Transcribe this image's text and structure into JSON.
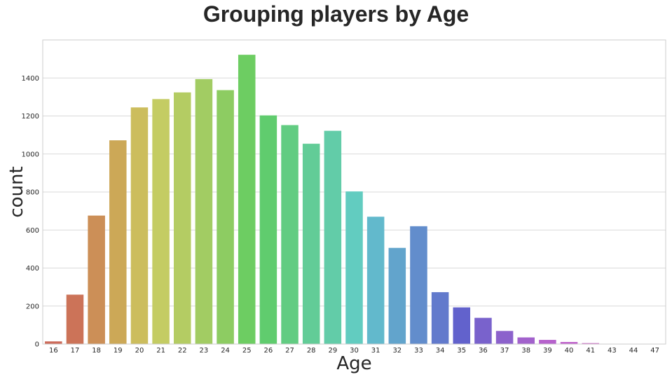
{
  "chart_data": {
    "type": "bar",
    "title": "Grouping players by Age",
    "xlabel": "Age",
    "ylabel": "count",
    "ylim": [
      0,
      1600
    ],
    "yticks": [
      0,
      200,
      400,
      600,
      800,
      1000,
      1200,
      1400
    ],
    "grid": true,
    "categories": [
      "16",
      "17",
      "18",
      "19",
      "20",
      "21",
      "22",
      "23",
      "24",
      "25",
      "26",
      "27",
      "28",
      "29",
      "30",
      "31",
      "32",
      "33",
      "34",
      "35",
      "36",
      "37",
      "38",
      "39",
      "40",
      "41",
      "43",
      "44",
      "47"
    ],
    "values": [
      14,
      260,
      676,
      1072,
      1245,
      1289,
      1324,
      1394,
      1336,
      1522,
      1203,
      1152,
      1054,
      1122,
      803,
      670,
      506,
      620,
      273,
      193,
      138,
      69,
      35,
      22,
      11,
      5,
      1,
      1,
      1
    ],
    "colors": [
      "#cc6a58",
      "#cc7358",
      "#cc8f57",
      "#cca857",
      "#ccbd5d",
      "#c4cc63",
      "#b4cc63",
      "#a2cc63",
      "#8dcc62",
      "#6dcd62",
      "#60cc6e",
      "#62cc82",
      "#62cc97",
      "#62cca8",
      "#62ccc0",
      "#62b9cc",
      "#62a4cc",
      "#628dcc",
      "#627acc",
      "#6262cc",
      "#7962cc",
      "#8c62cc",
      "#a262cc",
      "#b662cc",
      "#c062cc",
      "#cc62c4",
      "#cc62b2",
      "#cc629e",
      "#cc628b"
    ]
  }
}
